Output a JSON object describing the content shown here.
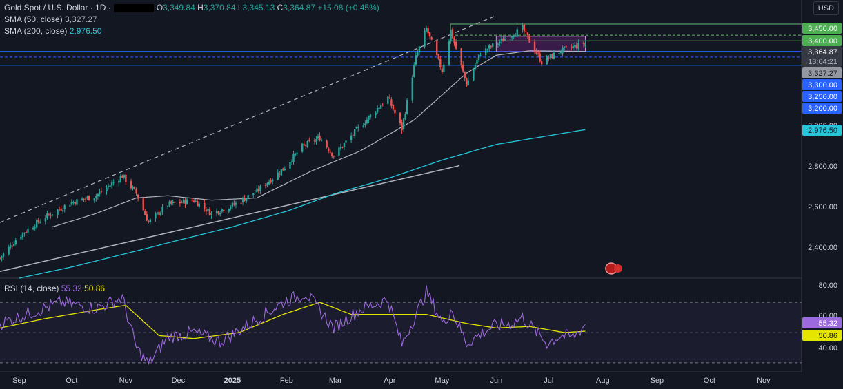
{
  "header": {
    "symbol": "Gold Spot / U.S. Dollar · 1D ·",
    "o_label": "O",
    "o": "3,349.84",
    "h_label": "H",
    "h": "3,370.84",
    "l_label": "L",
    "l": "3,345.13",
    "c_label": "C",
    "c": "3,364.87",
    "change": "+15.08 (+0.45%)"
  },
  "currency": "USD",
  "sma50": {
    "label": "SMA (50, close)",
    "value": "3,327.27",
    "color": "#b2b5be"
  },
  "sma200": {
    "label": "SMA (200, close)",
    "value": "2,976.50",
    "color": "#26c6da"
  },
  "rsi": {
    "label": "RSI (14, close)",
    "value": "55.32",
    "ma_value": "50.86",
    "color": "#9c6ade",
    "ma_color": "#e5e500"
  },
  "price_axis": [
    "3,450.00",
    "3,400.00",
    "3,364.87",
    "13:04:21",
    "3,327.27",
    "3,300.00",
    "3,250.00",
    "3,200.00",
    "3,000.00",
    "2,976.50",
    "2,800.00",
    "2,600.00",
    "2,400.00"
  ],
  "rsi_axis": [
    "80.00",
    "60.00",
    "55.32",
    "50.86",
    "40.00"
  ],
  "time_axis": [
    "Sep",
    "Oct",
    "Nov",
    "Dec",
    "2025",
    "Feb",
    "Mar",
    "Apr",
    "May",
    "Jun",
    "Jul",
    "Aug",
    "Sep",
    "Oct",
    "Nov"
  ],
  "chart_data": [
    {
      "type": "candlestick",
      "title": "Gold Spot / U.S. Dollar · 1D",
      "ylim": [
        2310,
        3490
      ],
      "x_range": [
        "2024-08-21",
        "2025-11-20"
      ],
      "ohlc_last": {
        "date": "2025-07-22",
        "open": 3349.84,
        "high": 3370.84,
        "low": 3345.13,
        "close": 3364.87
      },
      "close_anchors": [
        [
          "2024-08-21",
          2400
        ],
        [
          "2024-09-01",
          2500
        ],
        [
          "2024-09-15",
          2580
        ],
        [
          "2024-10-01",
          2650
        ],
        [
          "2024-10-15",
          2680
        ],
        [
          "2024-10-30",
          2770
        ],
        [
          "2024-11-07",
          2690
        ],
        [
          "2024-11-14",
          2560
        ],
        [
          "2024-11-25",
          2640
        ],
        [
          "2024-12-10",
          2660
        ],
        [
          "2024-12-20",
          2600
        ],
        [
          "2025-01-02",
          2640
        ],
        [
          "2025-01-15",
          2700
        ],
        [
          "2025-01-30",
          2800
        ],
        [
          "2025-02-10",
          2900
        ],
        [
          "2025-02-20",
          2940
        ],
        [
          "2025-02-28",
          2860
        ],
        [
          "2025-03-15",
          2990
        ],
        [
          "2025-03-31",
          3120
        ],
        [
          "2025-04-08",
          2980
        ],
        [
          "2025-04-16",
          3300
        ],
        [
          "2025-04-22",
          3430
        ],
        [
          "2025-05-01",
          3240
        ],
        [
          "2025-05-06",
          3420
        ],
        [
          "2025-05-15",
          3180
        ],
        [
          "2025-05-23",
          3320
        ],
        [
          "2025-06-05",
          3380
        ],
        [
          "2025-06-16",
          3430
        ],
        [
          "2025-06-27",
          3280
        ],
        [
          "2025-07-08",
          3330
        ],
        [
          "2025-07-22",
          3364.87
        ]
      ],
      "sma50_anchors": [
        [
          "2024-09-20",
          2540
        ],
        [
          "2024-10-15",
          2600
        ],
        [
          "2024-11-07",
          2670
        ],
        [
          "2024-11-25",
          2680
        ],
        [
          "2024-12-20",
          2660
        ],
        [
          "2025-01-15",
          2670
        ],
        [
          "2025-02-15",
          2790
        ],
        [
          "2025-03-15",
          2880
        ],
        [
          "2025-04-15",
          3020
        ],
        [
          "2025-05-15",
          3230
        ],
        [
          "2025-06-01",
          3310
        ],
        [
          "2025-06-20",
          3330
        ],
        [
          "2025-07-22",
          3327.27
        ]
      ],
      "sma200_anchors": [
        [
          "2024-09-01",
          2310
        ],
        [
          "2024-10-01",
          2360
        ],
        [
          "2024-11-01",
          2420
        ],
        [
          "2024-12-01",
          2480
        ],
        [
          "2025-01-01",
          2540
        ],
        [
          "2025-02-01",
          2610
        ],
        [
          "2025-03-01",
          2690
        ],
        [
          "2025-04-01",
          2760
        ],
        [
          "2025-05-01",
          2840
        ],
        [
          "2025-06-01",
          2910
        ],
        [
          "2025-07-22",
          2976.5
        ]
      ],
      "levels": [
        {
          "value": 3450,
          "color": "#66bb6a"
        },
        {
          "value": 3400,
          "color": "#66bb6a"
        },
        {
          "value": 3375,
          "color": "#66bb6a"
        },
        {
          "value": 3327.27,
          "color": "#2962ff"
        },
        {
          "value": 3302,
          "color": "#2962ff"
        },
        {
          "value": 3265,
          "color": "#2962ff"
        }
      ],
      "range_box": {
        "x0": "2025-06-01",
        "x1": "2025-07-22",
        "y0": 3325,
        "y1": 3395,
        "color": "#9c27b0"
      },
      "trendlines": [
        {
          "from": [
            "2024-08-21",
            2560
          ],
          "to": [
            "2025-05-31",
            3485
          ],
          "style": "dashed",
          "color": "#b2b5be"
        },
        {
          "from": [
            "2024-08-21",
            2340
          ],
          "to": [
            "2025-05-11",
            2815
          ],
          "style": "solid",
          "color": "#b2b5be"
        }
      ]
    },
    {
      "type": "line",
      "title": "RSI (14, close)",
      "ylim": [
        24,
        86
      ],
      "band": [
        30,
        70
      ],
      "rsi_anchors": [
        [
          "2024-08-21",
          56
        ],
        [
          "2024-09-05",
          62
        ],
        [
          "2024-09-25",
          70
        ],
        [
          "2024-10-15",
          66
        ],
        [
          "2024-10-30",
          73
        ],
        [
          "2024-11-07",
          40
        ],
        [
          "2024-11-14",
          29
        ],
        [
          "2024-11-25",
          47
        ],
        [
          "2024-12-10",
          50
        ],
        [
          "2024-12-25",
          44
        ],
        [
          "2025-01-10",
          55
        ],
        [
          "2025-01-30",
          70
        ],
        [
          "2025-02-12",
          76
        ],
        [
          "2025-02-28",
          53
        ],
        [
          "2025-03-15",
          65
        ],
        [
          "2025-03-31",
          72
        ],
        [
          "2025-04-08",
          42
        ],
        [
          "2025-04-22",
          77
        ],
        [
          "2025-05-02",
          55
        ],
        [
          "2025-05-06",
          66
        ],
        [
          "2025-05-15",
          43
        ],
        [
          "2025-05-30",
          54
        ],
        [
          "2025-06-10",
          56
        ],
        [
          "2025-06-16",
          60
        ],
        [
          "2025-06-30",
          43
        ],
        [
          "2025-07-08",
          48
        ],
        [
          "2025-07-15",
          47
        ],
        [
          "2025-07-22",
          55.32
        ]
      ],
      "ma_anchors": [
        [
          "2024-08-21",
          53
        ],
        [
          "2024-09-15",
          59
        ],
        [
          "2024-10-15",
          65
        ],
        [
          "2024-11-01",
          68
        ],
        [
          "2024-11-20",
          48
        ],
        [
          "2024-12-10",
          46
        ],
        [
          "2025-01-05",
          50
        ],
        [
          "2025-01-30",
          62
        ],
        [
          "2025-02-20",
          70
        ],
        [
          "2025-03-10",
          62
        ],
        [
          "2025-03-31",
          62
        ],
        [
          "2025-04-22",
          62
        ],
        [
          "2025-05-15",
          56
        ],
        [
          "2025-06-01",
          53
        ],
        [
          "2025-06-20",
          54
        ],
        [
          "2025-07-10",
          50
        ],
        [
          "2025-07-22",
          50.86
        ]
      ]
    }
  ]
}
